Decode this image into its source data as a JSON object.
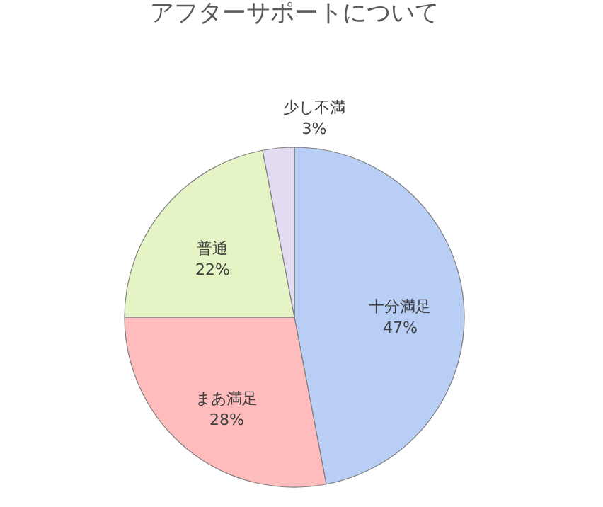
{
  "chart_data": {
    "type": "pie",
    "title": "アフターサポートについて",
    "categories": [
      "十分満足",
      "まあ満足",
      "普通",
      "少し不満"
    ],
    "values": [
      47,
      28,
      22,
      3
    ],
    "value_labels": [
      "47%",
      "28%",
      "22%",
      "3%"
    ],
    "colors": [
      "#b9cef5",
      "#ffbcbc",
      "#e4f4c4",
      "#e2dbf2"
    ]
  }
}
